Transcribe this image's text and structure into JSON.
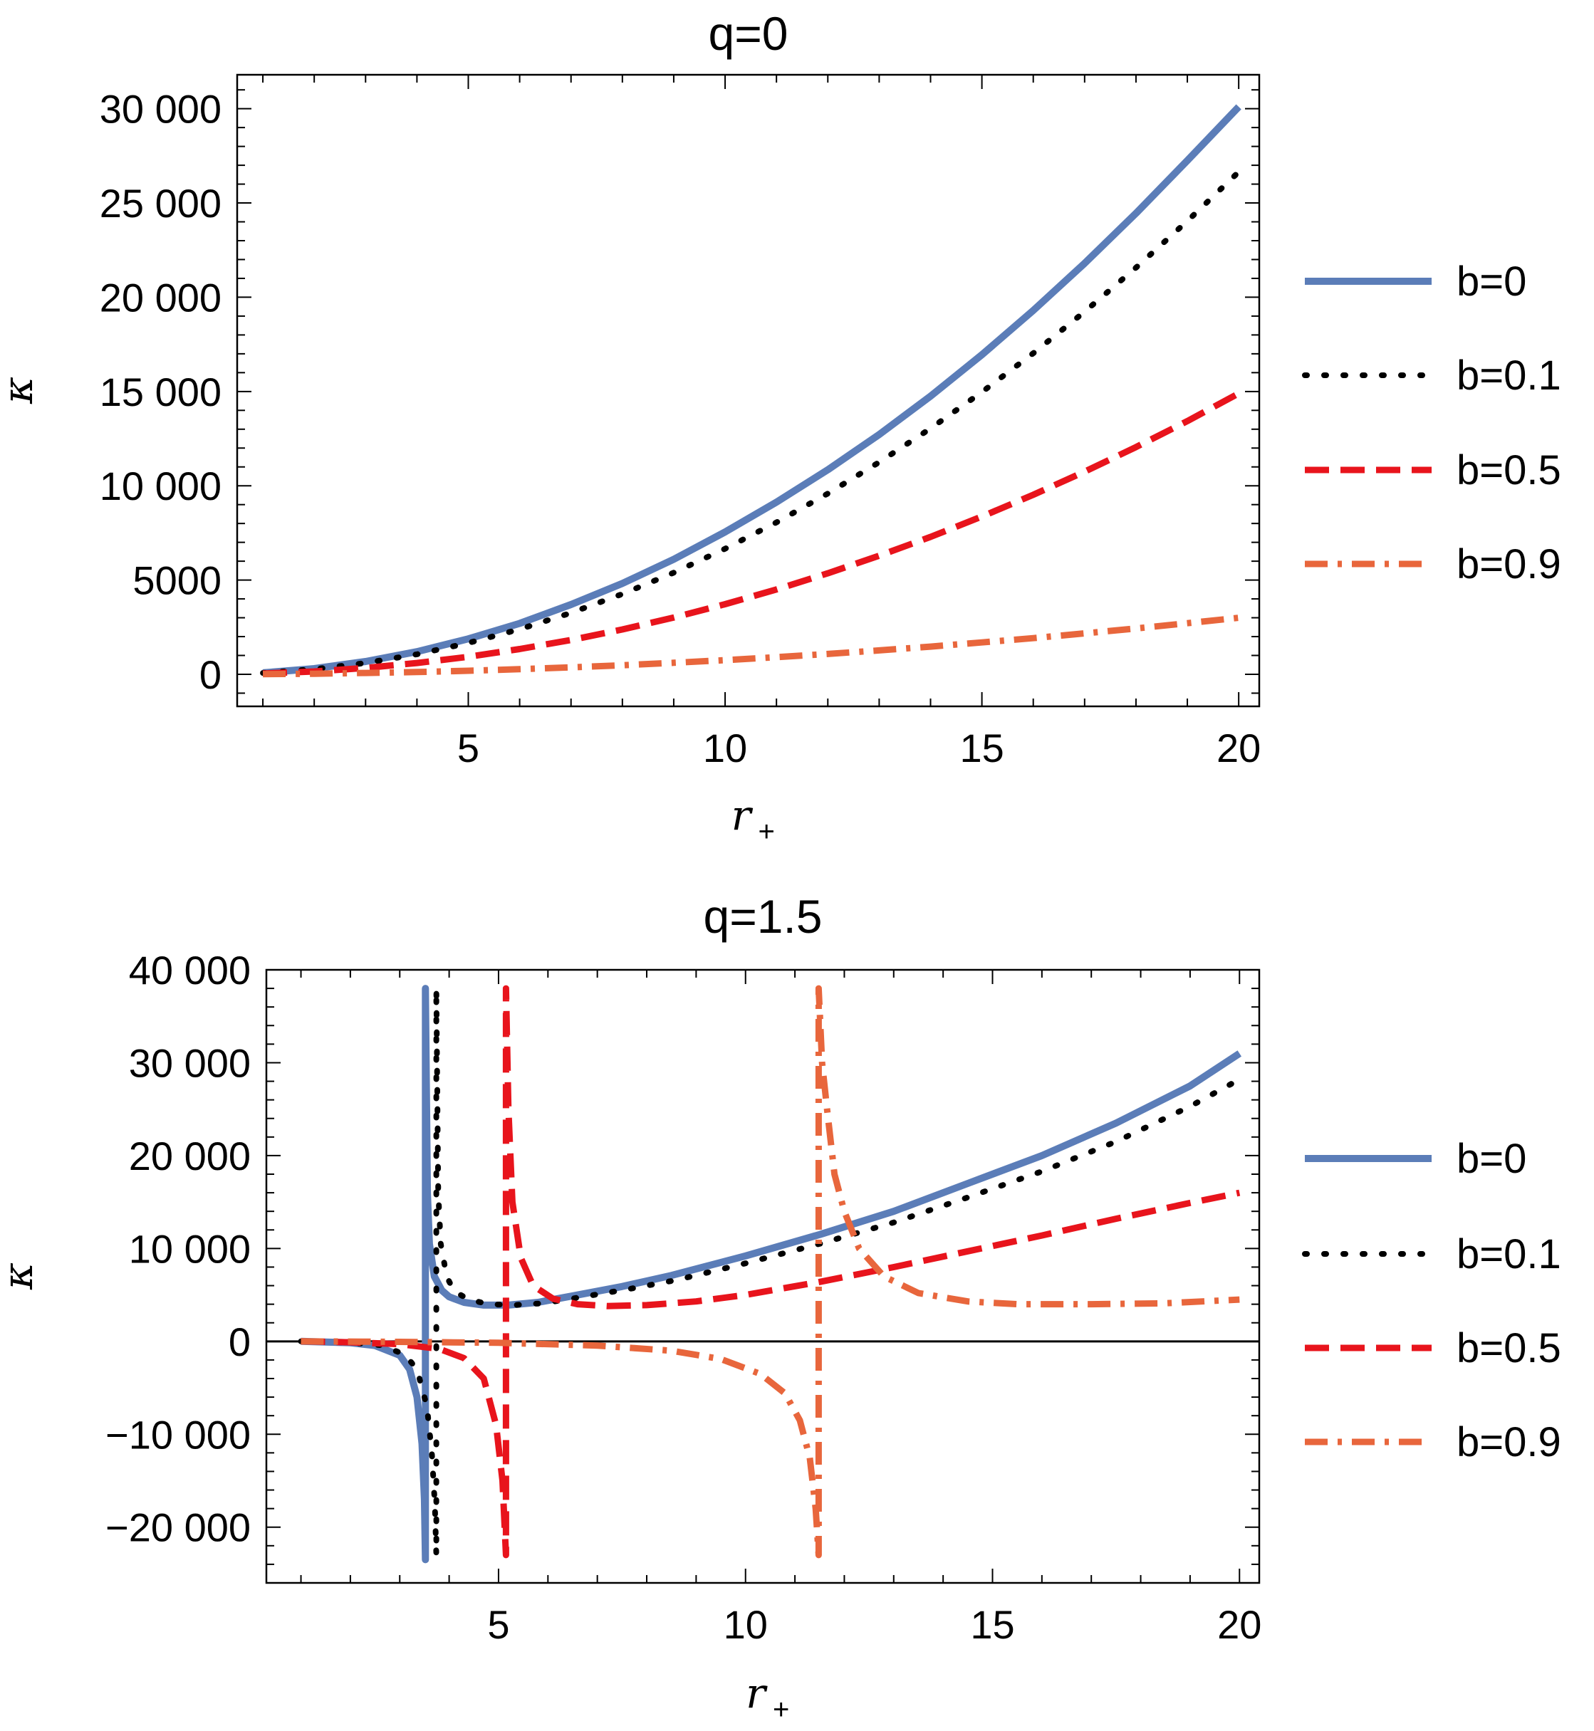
{
  "chart_data": [
    {
      "type": "line",
      "title": "q=0",
      "xlabel": "r",
      "xlabel_subscript": "+",
      "ylabel": "κ",
      "xlim": [
        0.5,
        20.4
      ],
      "ylim": [
        -1700,
        31800
      ],
      "xticks": [
        5,
        10,
        15,
        20
      ],
      "yticks": [
        0,
        5000,
        10000,
        15000,
        20000,
        25000,
        30000
      ],
      "ytick_labels": [
        "0",
        "5000",
        "10 000",
        "15 000",
        "20 000",
        "25 000",
        "30 000"
      ],
      "xtick_labels": [
        "5",
        "10",
        "15",
        "20"
      ],
      "grid": false,
      "legend_position": "right",
      "series": [
        {
          "name": "b=0",
          "style": "solid",
          "color": "#5b7db8",
          "x": [
            1,
            2,
            3,
            4,
            5,
            6,
            7,
            8,
            9,
            10,
            11,
            12,
            13,
            14,
            15,
            16,
            17,
            18,
            19,
            20
          ],
          "y": [
            80,
            300,
            680,
            1200,
            1880,
            2700,
            3700,
            4820,
            6100,
            7550,
            9130,
            10850,
            12720,
            14750,
            16950,
            19300,
            21800,
            24450,
            27250,
            30100
          ]
        },
        {
          "name": "b=0.1",
          "style": "dotted",
          "color": "#000000",
          "x": [
            1,
            2,
            3,
            4,
            5,
            6,
            7,
            8,
            9,
            10,
            11,
            12,
            13,
            14,
            15,
            16,
            17,
            18,
            19,
            20
          ],
          "y": [
            70,
            270,
            600,
            1060,
            1660,
            2390,
            3260,
            4260,
            5390,
            6660,
            8060,
            9590,
            11250,
            13040,
            14970,
            17030,
            19230,
            21570,
            24040,
            26650
          ]
        },
        {
          "name": "b=0.5",
          "style": "dashed",
          "color": "#e8141c",
          "x": [
            1,
            2,
            3,
            4,
            5,
            6,
            7,
            8,
            9,
            10,
            11,
            12,
            13,
            14,
            15,
            16,
            17,
            18,
            19,
            20
          ],
          "y": [
            40,
            150,
            340,
            600,
            930,
            1340,
            1820,
            2380,
            3010,
            3720,
            4500,
            5360,
            6290,
            7290,
            8370,
            9520,
            10750,
            12050,
            13430,
            14900
          ]
        },
        {
          "name": "b=0.9",
          "style": "dashdot",
          "color": "#e8663c",
          "x": [
            1,
            2,
            3,
            4,
            5,
            6,
            7,
            8,
            9,
            10,
            11,
            12,
            13,
            14,
            15,
            16,
            17,
            18,
            19,
            20
          ],
          "y": [
            10,
            30,
            70,
            120,
            190,
            270,
            370,
            480,
            610,
            750,
            910,
            1080,
            1270,
            1470,
            1690,
            1920,
            2170,
            2430,
            2710,
            3000
          ]
        }
      ]
    },
    {
      "type": "line",
      "title": "q=1.5",
      "xlabel": "r",
      "xlabel_subscript": "+",
      "ylabel": "κ",
      "xlim": [
        0.3,
        20.4
      ],
      "ylim": [
        -26000,
        40000
      ],
      "xticks": [
        5,
        10,
        15,
        20
      ],
      "yticks": [
        -20000,
        -10000,
        0,
        10000,
        20000,
        30000,
        40000
      ],
      "ytick_labels": [
        "−20 000",
        "−10 000",
        "0",
        "10 000",
        "20 000",
        "30 000",
        "40 000"
      ],
      "xtick_labels": [
        "5",
        "10",
        "15",
        "20"
      ],
      "grid": false,
      "zero_line": true,
      "legend_position": "right",
      "series": [
        {
          "name": "b=0",
          "style": "solid",
          "color": "#5b7db8",
          "x": [
            1,
            2,
            2.5,
            3,
            3.2,
            3.35,
            3.45,
            3.5,
            3.52,
            3.52,
            3.56,
            3.6,
            3.7,
            3.85,
            4,
            4.3,
            4.7,
            5.2,
            5.8,
            6.5,
            7.5,
            8.5,
            10,
            11.5,
            13,
            14.5,
            16,
            17.5,
            19,
            20
          ],
          "y": [
            0,
            -150,
            -450,
            -1500,
            -3000,
            -6000,
            -11000,
            -17000,
            -23500,
            38000,
            16000,
            10500,
            7000,
            5500,
            4800,
            4200,
            3900,
            3900,
            4200,
            4900,
            5900,
            7100,
            9200,
            11500,
            14000,
            17000,
            20000,
            23500,
            27500,
            31000
          ]
        },
        {
          "name": "b=0.1",
          "style": "dotted",
          "color": "#000000",
          "x": [
            1,
            2,
            2.6,
            3.1,
            3.35,
            3.55,
            3.65,
            3.71,
            3.74,
            3.74,
            3.78,
            3.83,
            3.95,
            4.1,
            4.4,
            4.8,
            5.3,
            5.9,
            6.6,
            7.6,
            8.6,
            10,
            11.5,
            13,
            14.5,
            16,
            17.5,
            19,
            20
          ],
          "y": [
            0,
            -130,
            -400,
            -1400,
            -3000,
            -7000,
            -12000,
            -17500,
            -23000,
            38000,
            16000,
            10500,
            7000,
            5400,
            4500,
            4000,
            3900,
            4100,
            4700,
            5600,
            6600,
            8400,
            10500,
            12800,
            15500,
            18300,
            21500,
            25300,
            28200
          ]
        },
        {
          "name": "b=0.5",
          "style": "dashed",
          "color": "#e8141c",
          "x": [
            1,
            2,
            3,
            3.8,
            4.3,
            4.7,
            4.95,
            5.08,
            5.15,
            5.15,
            5.2,
            5.28,
            5.45,
            5.7,
            6.1,
            6.6,
            7.2,
            8,
            9,
            10,
            11.5,
            13,
            14.5,
            16,
            17.5,
            19,
            20
          ],
          "y": [
            0,
            -100,
            -300,
            -800,
            -1800,
            -4000,
            -9000,
            -15000,
            -23000,
            38000,
            25000,
            15000,
            9000,
            6000,
            4600,
            4000,
            3800,
            3900,
            4300,
            5000,
            6400,
            8000,
            9700,
            11400,
            13200,
            14900,
            16000
          ]
        },
        {
          "name": "b=0.9",
          "style": "dashdot",
          "color": "#e8663c",
          "x": [
            1,
            3,
            5,
            7,
            8.5,
            9.5,
            10.3,
            10.8,
            11.1,
            11.3,
            11.42,
            11.48,
            11.48,
            11.55,
            11.65,
            11.8,
            12,
            12.3,
            12.8,
            13.5,
            14.5,
            15.5,
            17,
            18.5,
            20
          ],
          "y": [
            0,
            -50,
            -150,
            -450,
            -1000,
            -1900,
            -3500,
            -5600,
            -8500,
            -12500,
            -18000,
            -23000,
            38000,
            30000,
            25000,
            18000,
            14000,
            10000,
            7000,
            5200,
            4300,
            4000,
            4000,
            4100,
            4500
          ]
        }
      ]
    }
  ],
  "legend": [
    {
      "label": "b=0",
      "style": "solid",
      "color": "#5b7db8"
    },
    {
      "label": "b=0.1",
      "style": "dotted",
      "color": "#000000"
    },
    {
      "label": "b=0.5",
      "style": "dashed",
      "color": "#e8141c"
    },
    {
      "label": "b=0.9",
      "style": "dashdot",
      "color": "#e8663c"
    }
  ]
}
